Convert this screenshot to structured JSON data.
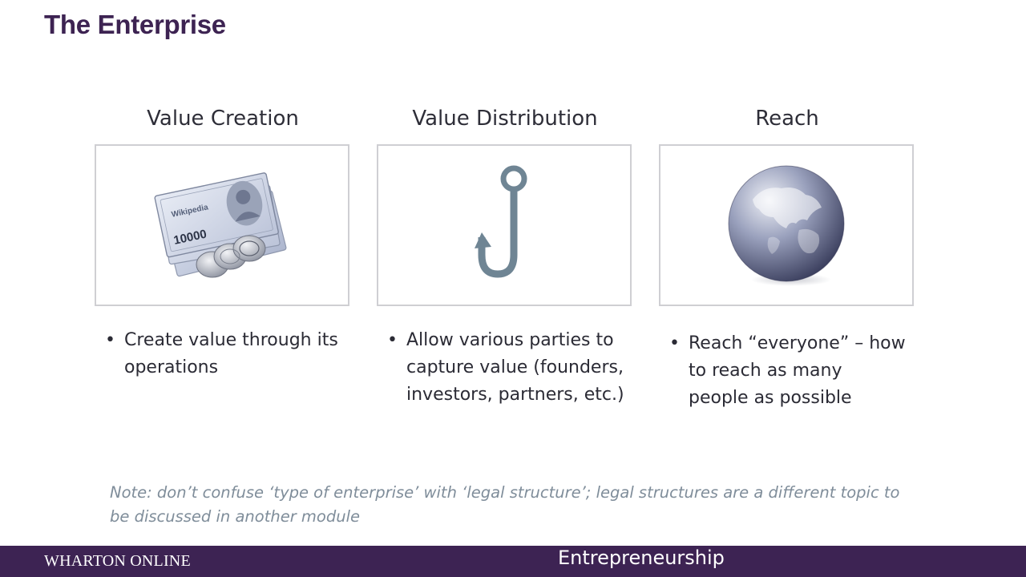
{
  "title": "The Enterprise",
  "columns": [
    {
      "heading": "Value Creation",
      "image_icon": "money-icon",
      "banknote_text": "Wikipedia",
      "banknote_amount": "10000",
      "bullets": [
        "Create value through its operations"
      ]
    },
    {
      "heading": "Value Distribution",
      "image_icon": "fish-hook-icon",
      "bullets": [
        "Allow various parties to capture value (founders, investors, partners, etc.)"
      ]
    },
    {
      "heading": "Reach",
      "image_icon": "globe-icon",
      "bullets": [
        "Reach “everyone” – how to reach as many people as possible"
      ]
    }
  ],
  "note": "Note: don’t confuse ‘type of enterprise’ with ‘legal structure’; legal structures are a different topic to be discussed in another module",
  "footer": {
    "left": "WHARTON ONLINE",
    "right": "Entrepreneurship"
  },
  "colors": {
    "title": "#3d2352",
    "footer_bg": "#3d2353",
    "note_text": "#7f8d9a",
    "hook": "#6f8594",
    "box_border": "#cfcfd3"
  }
}
